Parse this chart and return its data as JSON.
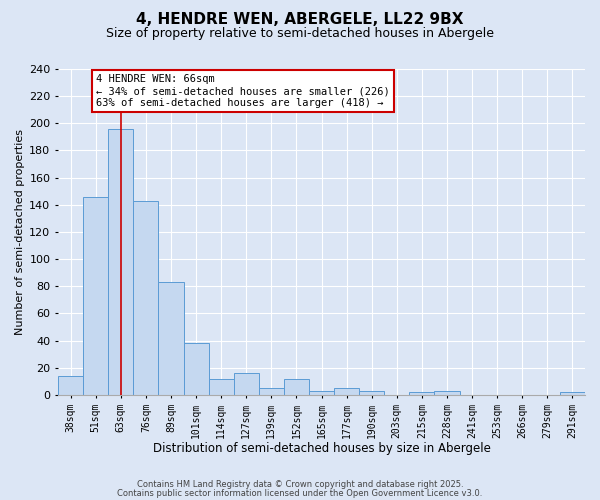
{
  "title": "4, HENDRE WEN, ABERGELE, LL22 9BX",
  "subtitle": "Size of property relative to semi-detached houses in Abergele",
  "xlabel": "Distribution of semi-detached houses by size in Abergele",
  "ylabel": "Number of semi-detached properties",
  "bins": [
    "38sqm",
    "51sqm",
    "63sqm",
    "76sqm",
    "89sqm",
    "101sqm",
    "114sqm",
    "127sqm",
    "139sqm",
    "152sqm",
    "165sqm",
    "177sqm",
    "190sqm",
    "203sqm",
    "215sqm",
    "228sqm",
    "241sqm",
    "253sqm",
    "266sqm",
    "279sqm",
    "291sqm"
  ],
  "values": [
    14,
    146,
    196,
    143,
    83,
    38,
    12,
    16,
    5,
    12,
    3,
    5,
    3,
    0,
    2,
    3,
    0,
    0,
    0,
    0,
    2
  ],
  "bar_color": "#c5d8f0",
  "bar_edge_color": "#5b9bd5",
  "vline_x_index": 2,
  "vline_color": "#cc0000",
  "annotation_title": "4 HENDRE WEN: 66sqm",
  "annotation_line1": "← 34% of semi-detached houses are smaller (226)",
  "annotation_line2": "63% of semi-detached houses are larger (418) →",
  "annotation_box_color": "#ffffff",
  "annotation_box_edge_color": "#cc0000",
  "ylim": [
    0,
    240
  ],
  "yticks": [
    0,
    20,
    40,
    60,
    80,
    100,
    120,
    140,
    160,
    180,
    200,
    220,
    240
  ],
  "background_color": "#dce6f5",
  "grid_color": "#ffffff",
  "footer1": "Contains HM Land Registry data © Crown copyright and database right 2025.",
  "footer2": "Contains public sector information licensed under the Open Government Licence v3.0.",
  "title_fontsize": 11,
  "subtitle_fontsize": 9,
  "xlabel_fontsize": 8.5,
  "ylabel_fontsize": 8
}
